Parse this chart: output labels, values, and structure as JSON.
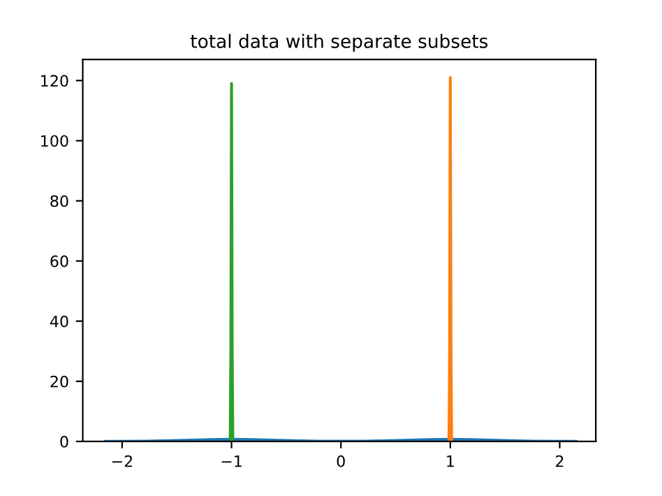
{
  "chart_data": {
    "type": "line",
    "title": "total data with separate subsets",
    "series": [
      {
        "color": "#1f77b4",
        "x": [
          -2.15,
          -1.8,
          -1.5,
          -1.2,
          -1.0,
          -0.8,
          -0.5,
          -0.2,
          0,
          0.2,
          0.5,
          0.8,
          1.0,
          1.2,
          1.5,
          1.8,
          2.15
        ],
        "values": [
          0,
          0.05,
          0.3,
          0.6,
          0.7,
          0.6,
          0.3,
          0.1,
          0.05,
          0.1,
          0.3,
          0.6,
          0.7,
          0.6,
          0.3,
          0.05,
          0
        ]
      },
      {
        "color": "#2ca02c",
        "x": [
          -1.012,
          -1.006,
          -1.0,
          -0.994,
          -0.988
        ],
        "values": [
          0,
          30,
          119,
          30,
          0
        ]
      },
      {
        "color": "#ff7f0e",
        "x": [
          0.988,
          0.994,
          1.0,
          1.006,
          1.012
        ],
        "values": [
          0,
          30,
          121,
          30,
          0
        ]
      }
    ],
    "xlim": [
      -2.36,
      2.33
    ],
    "ylim": [
      0,
      127
    ],
    "xticks": [
      {
        "value": -2,
        "label": "−2"
      },
      {
        "value": -1,
        "label": "−1"
      },
      0,
      1,
      2
    ],
    "yticks": [
      0,
      20,
      40,
      60,
      80,
      100,
      120
    ],
    "grid": false,
    "legend": false
  }
}
